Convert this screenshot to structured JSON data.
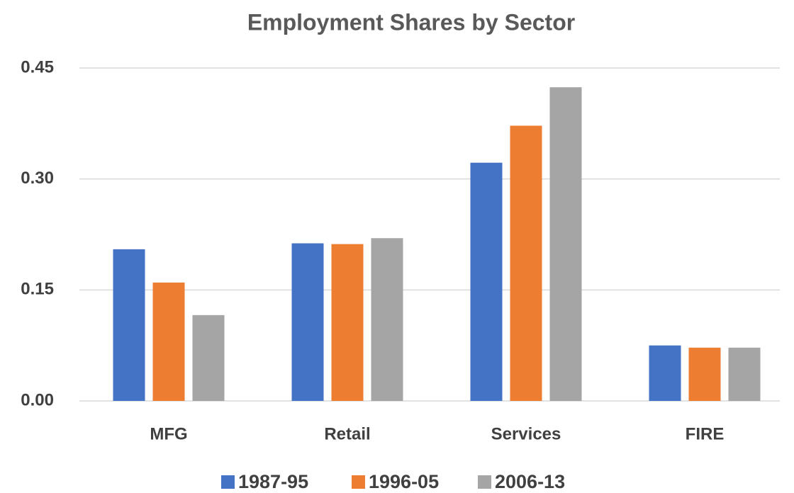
{
  "chart_data": {
    "type": "bar",
    "title": "Employment Shares by Sector",
    "categories": [
      "MFG",
      "Retail",
      "Services",
      "FIRE"
    ],
    "series": [
      {
        "name": "1987-95",
        "color": "#4472c4",
        "values": [
          0.205,
          0.213,
          0.322,
          0.075
        ]
      },
      {
        "name": "1996-05",
        "color": "#ed7d31",
        "values": [
          0.16,
          0.212,
          0.372,
          0.072
        ]
      },
      {
        "name": "2006-13",
        "color": "#a5a5a5",
        "values": [
          0.116,
          0.22,
          0.424,
          0.072
        ]
      }
    ],
    "ylim": [
      0,
      0.45
    ],
    "yticks": [
      {
        "value": 0,
        "label": "0.00"
      },
      {
        "value": 0.15,
        "label": "0.15"
      },
      {
        "value": 0.3,
        "label": "0.30"
      },
      {
        "value": 0.45,
        "label": "0.45"
      }
    ],
    "grid": true,
    "legend": "bottom"
  }
}
